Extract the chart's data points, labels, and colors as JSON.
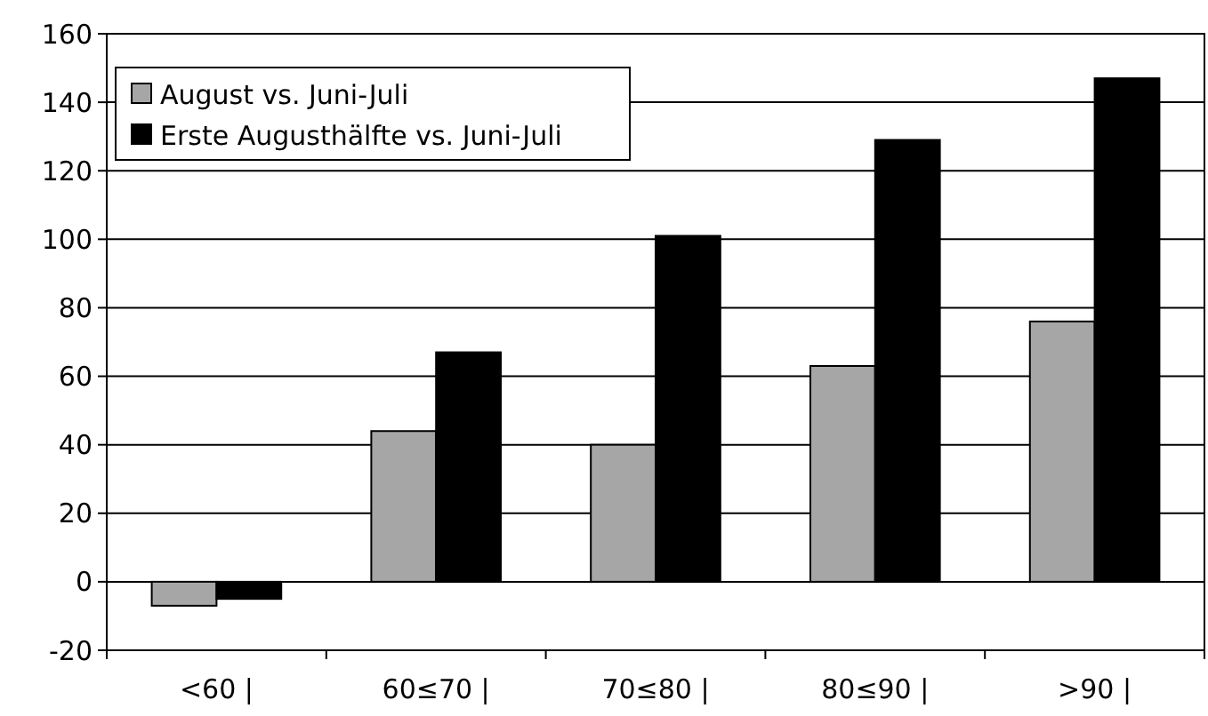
{
  "chart_data": {
    "type": "bar",
    "categories": [
      "<60 |",
      "60≤70 |",
      "70≤80 |",
      "80≤90 |",
      ">90 |"
    ],
    "series": [
      {
        "name": "August vs. Juni-Juli",
        "color": "#a6a6a6",
        "values": [
          -7,
          44,
          40,
          63,
          76
        ]
      },
      {
        "name": "Erste Augusthälfte vs. Juni-Juli",
        "color": "#000000",
        "values": [
          -5,
          67,
          101,
          129,
          147
        ]
      }
    ],
    "ylim": [
      -20,
      160
    ],
    "yticks": [
      -20,
      0,
      20,
      40,
      60,
      80,
      100,
      120,
      140,
      160
    ],
    "grid": "y",
    "legend": "top left"
  }
}
